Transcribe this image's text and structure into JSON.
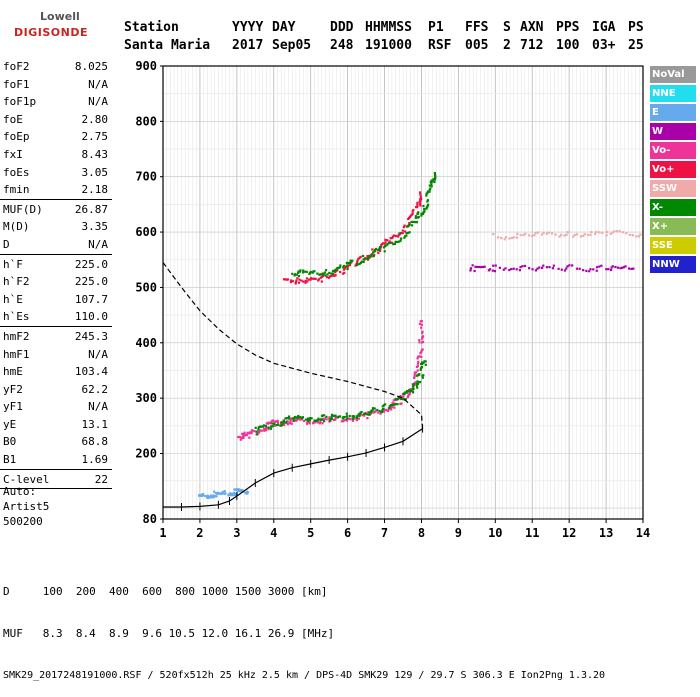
{
  "logo": {
    "line1": "Lowell",
    "line2": "DIGISONDE"
  },
  "header": {
    "row1": [
      "Station",
      "YYYY",
      "DAY",
      "DDD",
      "HHMMSS",
      "P1",
      "FFS",
      "S",
      "AXN",
      "PPS",
      "IGA",
      "PS"
    ],
    "row2": [
      "Santa Maria",
      "2017",
      "Sep05",
      "248",
      "191000",
      "RSF",
      "005",
      "2",
      "712",
      "100",
      "03+",
      "25"
    ]
  },
  "params": {
    "group1": [
      {
        "label": "foF2",
        "value": "8.025"
      },
      {
        "label": "foF1",
        "value": "N/A"
      },
      {
        "label": "foF1p",
        "value": "N/A"
      },
      {
        "label": "foE",
        "value": "2.80"
      },
      {
        "label": "foEp",
        "value": "2.75"
      },
      {
        "label": "fxI",
        "value": "8.43"
      },
      {
        "label": "foEs",
        "value": "3.05"
      },
      {
        "label": "fmin",
        "value": "2.18"
      }
    ],
    "group2": [
      {
        "label": "MUF(D)",
        "value": "26.87"
      },
      {
        "label": "M(D)",
        "value": "3.35"
      },
      {
        "label": "D",
        "value": "N/A"
      }
    ],
    "group3": [
      {
        "label": "h`F",
        "value": "225.0"
      },
      {
        "label": "h`F2",
        "value": "225.0"
      },
      {
        "label": "h`E",
        "value": "107.7"
      },
      {
        "label": "h`Es",
        "value": "110.0"
      }
    ],
    "group4": [
      {
        "label": "hmF2",
        "value": "245.3"
      },
      {
        "label": "hmF1",
        "value": "N/A"
      },
      {
        "label": "hmE",
        "value": "103.4"
      },
      {
        "label": "yF2",
        "value": "62.2"
      },
      {
        "label": "yF1",
        "value": "N/A"
      },
      {
        "label": "yE",
        "value": "13.1"
      },
      {
        "label": "B0",
        "value": "68.8"
      },
      {
        "label": "B1",
        "value": "1.69"
      }
    ],
    "group5": [
      {
        "label": "C-level",
        "value": "22"
      }
    ]
  },
  "auto": {
    "line1": "Auto:",
    "line2": "Artist5",
    "line3": "500200"
  },
  "legend": [
    {
      "label": "NoVal",
      "color": "#999999"
    },
    {
      "label": "NNE",
      "color": "#22ddee"
    },
    {
      "label": "E",
      "color": "#66aaee"
    },
    {
      "label": "W",
      "color": "#aa00aa"
    },
    {
      "label": "Vo-",
      "color": "#ee3399"
    },
    {
      "label": "Vo+",
      "color": "#ee1144"
    },
    {
      "label": "SSW",
      "color": "#f0aaaa"
    },
    {
      "label": "X-",
      "color": "#008800"
    },
    {
      "label": "X+",
      "color": "#88bb55"
    },
    {
      "label": "SSE",
      "color": "#cccc00"
    },
    {
      "label": "NNW",
      "color": "#2222cc"
    }
  ],
  "footer": {
    "line1": "D     100  200  400  600  800 1000 1500 3000 [km]",
    "line2": "MUF   8.3  8.4  8.9  9.6 10.5 12.0 16.1 26.9 [MHz]",
    "line3": "SMK29_2017248191000.RSF / 520fx512h 25 kHz 2.5 km / DPS-4D SMK29 129 / 29.7 S 306.3 E Ion2Png 1.3.20"
  },
  "chart_data": {
    "type": "scatter",
    "xlabel": "",
    "ylabel": "",
    "xlim": [
      1,
      14
    ],
    "ylim": [
      80,
      900
    ],
    "xticks": [
      1,
      2,
      3,
      4,
      5,
      6,
      7,
      8,
      9,
      10,
      11,
      12,
      13,
      14
    ],
    "yticks": [
      80,
      200,
      300,
      400,
      500,
      600,
      700,
      800,
      900
    ],
    "grid": true,
    "series": [
      {
        "name": "O-trace (Vo-)",
        "color": "#ee3399",
        "points": [
          [
            3.05,
            228
          ],
          [
            3.3,
            232
          ],
          [
            3.7,
            242
          ],
          [
            4.0,
            252
          ],
          [
            4.3,
            256
          ],
          [
            4.6,
            258
          ],
          [
            5.0,
            257
          ],
          [
            5.5,
            258
          ],
          [
            6.0,
            261
          ],
          [
            6.5,
            267
          ],
          [
            7.0,
            278
          ],
          [
            7.4,
            292
          ],
          [
            7.7,
            312
          ],
          [
            7.9,
            345
          ],
          [
            8.0,
            395
          ],
          [
            8.03,
            440
          ]
        ]
      },
      {
        "name": "X-trace (X-)",
        "color": "#008800",
        "points": [
          [
            3.5,
            238
          ],
          [
            4.0,
            250
          ],
          [
            4.5,
            262
          ],
          [
            5.0,
            262
          ],
          [
            5.5,
            262
          ],
          [
            6.0,
            265
          ],
          [
            6.5,
            270
          ],
          [
            7.0,
            280
          ],
          [
            7.5,
            298
          ],
          [
            7.8,
            318
          ],
          [
            8.0,
            340
          ],
          [
            8.1,
            370
          ]
        ]
      },
      {
        "name": "O-trace 2nd hop (Vo+)",
        "color": "#ee1144",
        "points": [
          [
            4.3,
            512
          ],
          [
            4.8,
            510
          ],
          [
            5.3,
            514
          ],
          [
            5.8,
            527
          ],
          [
            6.3,
            545
          ],
          [
            6.8,
            565
          ],
          [
            7.2,
            585
          ],
          [
            7.6,
            610
          ],
          [
            7.9,
            640
          ],
          [
            8.0,
            670
          ]
        ]
      },
      {
        "name": "X-trace 2nd hop (X-)",
        "color": "#008800",
        "points": [
          [
            4.5,
            524
          ],
          [
            5.0,
            524
          ],
          [
            5.5,
            526
          ],
          [
            6.0,
            537
          ],
          [
            6.5,
            553
          ],
          [
            7.0,
            570
          ],
          [
            7.5,
            593
          ],
          [
            7.9,
            620
          ],
          [
            8.1,
            645
          ],
          [
            8.3,
            680
          ],
          [
            8.35,
            710
          ]
        ]
      },
      {
        "name": "Es trace (E)",
        "color": "#66aaee",
        "points": [
          [
            2.0,
            120
          ],
          [
            2.3,
            122
          ],
          [
            2.6,
            124
          ],
          [
            2.9,
            126
          ],
          [
            3.1,
            128
          ],
          [
            3.3,
            130
          ]
        ]
      },
      {
        "name": "SSW band",
        "color": "#f0aaaa",
        "points": [
          [
            10.0,
            590
          ],
          [
            11.0,
            592
          ],
          [
            12.0,
            595
          ],
          [
            13.0,
            595
          ],
          [
            14.0,
            595
          ]
        ]
      },
      {
        "name": "W band",
        "color": "#aa00aa",
        "points": [
          [
            9.3,
            533
          ],
          [
            10.0,
            533
          ],
          [
            11.0,
            533
          ],
          [
            12.0,
            533
          ],
          [
            13.0,
            533
          ],
          [
            13.8,
            533
          ]
        ]
      }
    ],
    "profile_dashed": [
      [
        1.0,
        545
      ],
      [
        1.5,
        500
      ],
      [
        2.0,
        458
      ],
      [
        2.5,
        425
      ],
      [
        3.0,
        398
      ],
      [
        3.5,
        378
      ],
      [
        4.0,
        363
      ],
      [
        5.0,
        345
      ],
      [
        6.0,
        330
      ],
      [
        7.0,
        312
      ],
      [
        7.5,
        300
      ],
      [
        8.0,
        270
      ],
      [
        8.03,
        245
      ]
    ],
    "profile_solid": [
      [
        1.0,
        102
      ],
      [
        1.5,
        102
      ],
      [
        2.0,
        103
      ],
      [
        2.5,
        106
      ],
      [
        2.8,
        113
      ],
      [
        3.0,
        122
      ],
      [
        3.5,
        146
      ],
      [
        4.0,
        164
      ],
      [
        4.5,
        174
      ],
      [
        5.0,
        181
      ],
      [
        5.5,
        188
      ],
      [
        6.0,
        194
      ],
      [
        6.5,
        201
      ],
      [
        7.0,
        211
      ],
      [
        7.5,
        222
      ],
      [
        8.03,
        245
      ]
    ]
  }
}
